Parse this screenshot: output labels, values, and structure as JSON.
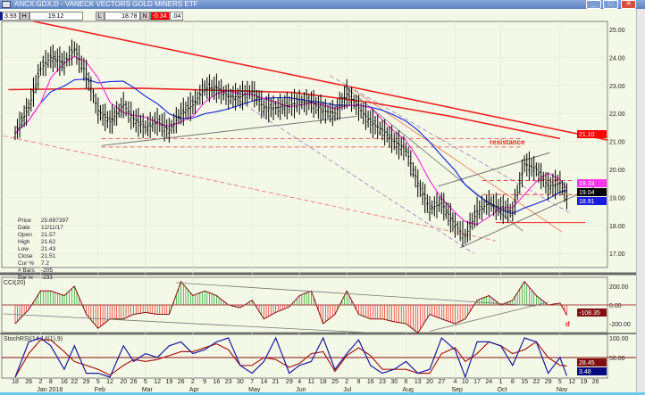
{
  "window": {
    "title": "ANCX:GDX,D - VANECK VECTORS GOLD MINERS ETF"
  },
  "infobar": {
    "v1": "3.93",
    "h_label": "H",
    "high": "19.12",
    "l_label": "L",
    "low": "18.78",
    "n_label": "N",
    "net": "-0.34",
    "v2": ".04"
  },
  "cursor_info": [
    {
      "label": "Price",
      "value": "25.697397"
    },
    {
      "label": "Date",
      "value": "12/11/17"
    },
    {
      "label": "Open",
      "value": "21.57"
    },
    {
      "label": "High",
      "value": "21.62"
    },
    {
      "label": "Low",
      "value": "21.43"
    },
    {
      "label": "Close",
      "value": "21.51"
    },
    {
      "label": "Cur %",
      "value": "7.2"
    },
    {
      "label": "# Bars",
      "value": "-205"
    },
    {
      "label": "Bar Ix",
      "value": "-231"
    }
  ],
  "colors": {
    "bg": "#f3f9e6",
    "price": "#000000",
    "ma_short": "#ff33dd",
    "ma_mid": "#2233dd",
    "ma_long": "#ee2222",
    "trend": "#ee2222",
    "cci_pos": "#1a9a1a",
    "cci_neg": "#ee2222",
    "stoch_fast": "#1a1aa0",
    "stoch_slow": "#aa1a1a"
  },
  "chart_data": [
    {
      "type": "bar",
      "name": "price",
      "ylim": [
        16.5,
        25.5
      ],
      "yticks": [
        "25.00",
        "24.00",
        "23.00",
        "22.00",
        "21.00",
        "20.00",
        "19.00",
        "18.00",
        "17.00"
      ],
      "annotation": "resistance",
      "dates": [
        "2017-12-18",
        "2017-12-26",
        "2018-01-02",
        "2018-01-08",
        "2018-01-16",
        "2018-01-22",
        "2018-01-29",
        "2018-02-05",
        "2018-02-12",
        "2018-02-20",
        "2018-02-26",
        "2018-03-05",
        "2018-03-12",
        "2018-03-19",
        "2018-03-26",
        "2018-04-02",
        "2018-04-09",
        "2018-04-16",
        "2018-04-23",
        "2018-04-30",
        "2018-05-07",
        "2018-05-14",
        "2018-05-21",
        "2018-05-29",
        "2018-06-04",
        "2018-06-11",
        "2018-06-18",
        "2018-06-25",
        "2018-07-02",
        "2018-07-09",
        "2018-07-16",
        "2018-07-23",
        "2018-07-30",
        "2018-08-06",
        "2018-08-13",
        "2018-08-20",
        "2018-08-27",
        "2018-09-04",
        "2018-09-10",
        "2018-09-17",
        "2018-09-24",
        "2018-10-01",
        "2018-10-08",
        "2018-10-15",
        "2018-10-22",
        "2018-10-29",
        "2018-11-05",
        "2018-11-09"
      ],
      "close": [
        21.3,
        22.2,
        23.6,
        24.0,
        23.8,
        24.3,
        23.4,
        22.1,
        21.7,
        22.3,
        21.8,
        21.5,
        21.7,
        21.4,
        22.0,
        22.3,
        22.9,
        22.9,
        22.6,
        22.6,
        22.8,
        22.2,
        22.2,
        22.3,
        22.4,
        22.4,
        22.1,
        22.0,
        22.7,
        22.2,
        21.7,
        21.4,
        21.0,
        20.7,
        19.5,
        18.6,
        18.8,
        18.0,
        17.6,
        18.5,
        18.8,
        18.6,
        18.5,
        20.2,
        20.0,
        19.4,
        19.5,
        19.04
      ],
      "last_labels": [
        {
          "value": "21.10",
          "color": "#ff0000"
        },
        {
          "value": "19.33",
          "color": "#ff33ee"
        },
        {
          "value": "19.04",
          "color": "#000000"
        },
        {
          "value": "18.91",
          "color": "#1a1ae0"
        }
      ],
      "ma_long": [
        [
          "2017-12-14",
          22.85
        ],
        [
          "2018-03-01",
          22.9
        ],
        [
          "2018-06-01",
          22.75
        ],
        [
          "2018-07-15",
          22.4
        ],
        [
          "2018-09-01",
          21.9
        ],
        [
          "2018-11-05",
          21.1
        ]
      ],
      "trendlines": [
        {
          "color": "#ee2222",
          "width": 1.6,
          "dash": "",
          "points": [
            [
              "2017-12-24",
              25.35
            ],
            [
              "2018-12-03",
              21.05
            ]
          ]
        },
        {
          "color": "#ee6666",
          "width": 1,
          "dash": "5,3",
          "points": [
            [
              "2018-02-07",
              20.8
            ],
            [
              "2018-10-14",
              20.8
            ]
          ]
        },
        {
          "color": "#ee6666",
          "width": 1,
          "dash": "5,3",
          "points": [
            [
              "2018-02-07",
              21.1
            ],
            [
              "2018-10-14",
              21.1
            ]
          ]
        },
        {
          "color": "#f08080",
          "width": 1,
          "dash": "5,3",
          "points": [
            [
              "2017-12-11",
              21.2
            ],
            [
              "2018-09-28",
              17.45
            ]
          ]
        },
        {
          "color": "#777777",
          "width": 1,
          "dash": "",
          "points": [
            [
              "2018-02-07",
              20.85
            ],
            [
              "2018-07-08",
              21.9
            ]
          ]
        },
        {
          "color": "#888888",
          "width": 1,
          "dash": "",
          "points": [
            [
              "2018-06-30",
              23.0
            ],
            [
              "2018-10-14",
              17.8
            ]
          ]
        },
        {
          "color": "#f08a6a",
          "width": 1,
          "dash": "",
          "points": [
            [
              "2018-07-05",
              22.87
            ],
            [
              "2018-11-06",
              17.77
            ]
          ]
        },
        {
          "color": "#b090c8",
          "width": 1,
          "dash": "5,3",
          "points": [
            [
              "2018-06-22",
              23.35
            ],
            [
              "2018-11-12",
              18.4
            ]
          ]
        },
        {
          "color": "#b090c8",
          "width": 1,
          "dash": "5,3",
          "points": [
            [
              "2018-04-15",
              23.0
            ],
            [
              "2018-09-15",
              17.0
            ]
          ]
        },
        {
          "color": "#777777",
          "width": 1,
          "dash": "",
          "points": [
            [
              "2018-09-07",
              17.2
            ],
            [
              "2018-11-28",
              19.45
            ]
          ]
        },
        {
          "color": "#777777",
          "width": 1,
          "dash": "",
          "points": [
            [
              "2018-08-25",
              19.4
            ],
            [
              "2018-10-30",
              20.6
            ]
          ]
        },
        {
          "color": "#ee2222",
          "width": 1,
          "dash": "",
          "points": [
            [
              "2018-09-28",
              18.1
            ],
            [
              "2018-11-20",
              18.1
            ]
          ]
        },
        {
          "color": "#ee4444",
          "width": 1,
          "dash": "5,3",
          "points": [
            [
              "2018-09-20",
              19.6
            ],
            [
              "2018-11-12",
              19.6
            ]
          ]
        },
        {
          "color": "#ee4444",
          "width": 1,
          "dash": "5,3",
          "points": [
            [
              "2018-09-20",
              19.1
            ],
            [
              "2018-11-20",
              19.1
            ]
          ]
        }
      ]
    },
    {
      "type": "bar",
      "name": "CCI(20)",
      "title": "CCI(20)",
      "ylim": [
        -300,
        300
      ],
      "yticks": [
        "200.00",
        "0.00",
        "-200.00"
      ],
      "last_label": "-108.35",
      "annotation": "d",
      "values": [
        -200,
        -50,
        150,
        150,
        100,
        200,
        -100,
        -250,
        -150,
        -150,
        -100,
        -80,
        -100,
        -100,
        250,
        100,
        150,
        100,
        0,
        -30,
        50,
        -150,
        -80,
        -20,
        100,
        150,
        -200,
        -100,
        150,
        -100,
        -150,
        -150,
        -180,
        -200,
        -300,
        -100,
        -150,
        -200,
        -150,
        50,
        100,
        0,
        50,
        250,
        100,
        0,
        20,
        -108.35
      ],
      "trendlines": [
        {
          "points": [
            [
              "2018-03-23",
              238
            ],
            [
              "2018-10-22",
              -10
            ]
          ]
        },
        {
          "points": [
            [
              "2017-12-11",
              -95
            ],
            [
              "2018-07-14",
              -295
            ]
          ]
        },
        {
          "points": [
            [
              "2018-08-20",
              -280
            ],
            [
              "2018-10-29",
              30
            ]
          ]
        }
      ]
    },
    {
      "type": "line",
      "name": "StochRSI",
      "title": "StochRSI(14,14(1),9)",
      "ylim": [
        0,
        100
      ],
      "yticks": [
        "100.00",
        "50.00"
      ],
      "series": [
        {
          "label": "3.48",
          "color": "#1a1aa0",
          "values": [
            0,
            90,
            100,
            80,
            20,
            80,
            10,
            10,
            0,
            80,
            40,
            60,
            50,
            80,
            90,
            60,
            70,
            90,
            100,
            30,
            10,
            40,
            100,
            10,
            30,
            40,
            100,
            20,
            60,
            95,
            30,
            10,
            20,
            40,
            10,
            20,
            100,
            70,
            0,
            90,
            90,
            80,
            30,
            100,
            90,
            10,
            50,
            3.48
          ]
        },
        {
          "label": "28.45",
          "color": "#aa1a1a",
          "values": [
            0,
            60,
            95,
            95,
            65,
            40,
            30,
            20,
            5,
            30,
            45,
            40,
            45,
            55,
            65,
            65,
            75,
            85,
            70,
            30,
            30,
            50,
            45,
            25,
            35,
            60,
            65,
            15,
            55,
            75,
            55,
            20,
            20,
            20,
            10,
            10,
            60,
            75,
            40,
            60,
            90,
            80,
            60,
            70,
            90,
            50,
            30,
            28.45
          ]
        }
      ]
    },
    {
      "type": "axis",
      "day_ticks": [
        "18",
        "26",
        "2",
        "8",
        "16",
        "22",
        "29",
        "5",
        "12",
        "20",
        "26",
        "5",
        "12",
        "19",
        "26",
        "2",
        "9",
        "16",
        "23",
        "30",
        "7",
        "14",
        "21",
        "29",
        "4",
        "11",
        "18",
        "25",
        "2",
        "9",
        "16",
        "23",
        "30",
        "6",
        "13",
        "20",
        "27",
        "4",
        "10",
        "17",
        "24",
        "1",
        "8",
        "15",
        "22",
        "29",
        "5",
        "12",
        "19",
        "26"
      ],
      "months": [
        {
          "label": "Jan 2018",
          "date": "2018-01-02"
        },
        {
          "label": "Feb",
          "date": "2018-02-05"
        },
        {
          "label": "Mar",
          "date": "2018-03-05"
        },
        {
          "label": "Apr",
          "date": "2018-04-02"
        },
        {
          "label": "May",
          "date": "2018-05-07"
        },
        {
          "label": "Jun",
          "date": "2018-06-04"
        },
        {
          "label": "Jul",
          "date": "2018-07-02"
        },
        {
          "label": "Aug",
          "date": "2018-08-06"
        },
        {
          "label": "Sep",
          "date": "2018-09-04"
        },
        {
          "label": "Oct",
          "date": "2018-10-01"
        },
        {
          "label": "Nov",
          "date": "2018-11-05"
        }
      ]
    }
  ]
}
